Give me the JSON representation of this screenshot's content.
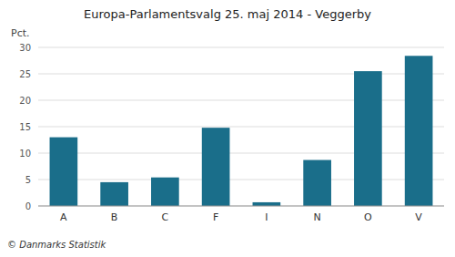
{
  "chart_data": {
    "type": "bar",
    "title": "Europa-Parlamentsvalg 25. maj 2014 - Veggerby",
    "ylabel": "Pct.",
    "annotations": [
      "© Danmarks Statistik"
    ],
    "categories": [
      "A",
      "B",
      "C",
      "F",
      "I",
      "N",
      "O",
      "V"
    ],
    "values": [
      13.0,
      4.5,
      5.4,
      14.8,
      0.7,
      8.7,
      25.5,
      28.4
    ],
    "color": "#1a6e8a",
    "ylim": [
      0,
      30
    ],
    "yticks": [
      0,
      5,
      10,
      15,
      20,
      25,
      30
    ],
    "grid": true
  }
}
